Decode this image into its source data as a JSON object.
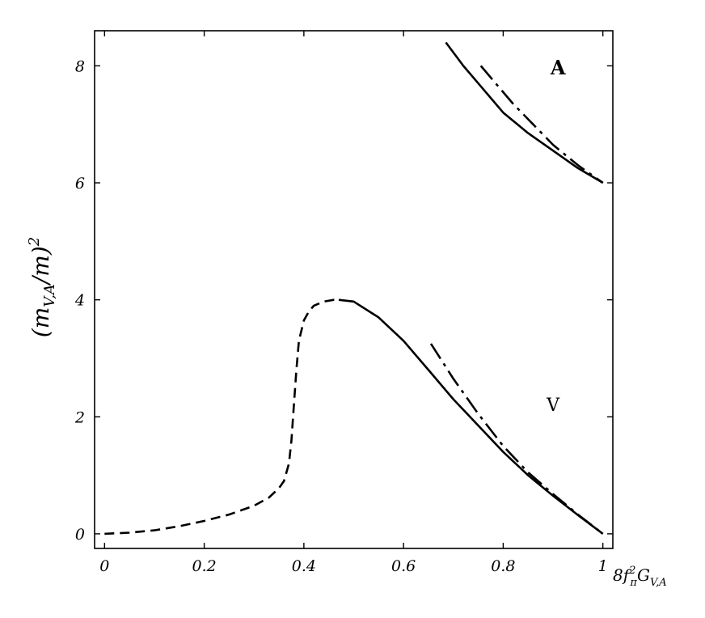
{
  "chart_data": {
    "type": "line",
    "xlabel": "8f_π²G_{V,A}",
    "ylabel": "(m_{V,A}/m)²",
    "xlim": [
      -0.02,
      1.02
    ],
    "ylim": [
      -0.25,
      8.6
    ],
    "xticks": [
      0,
      0.2,
      0.4,
      0.6,
      0.8,
      1
    ],
    "xtick_labels": [
      "0",
      "0.2",
      "0.4",
      "0.6",
      "0.8",
      "1"
    ],
    "yticks": [
      0,
      2,
      4,
      6,
      8
    ],
    "ytick_labels": [
      "0",
      "2",
      "4",
      "6",
      "8"
    ],
    "grid": false,
    "legend": "none",
    "annotations": [
      {
        "text": "A",
        "x": 0.91,
        "y": 7.85
      },
      {
        "text": "V",
        "x": 0.9,
        "y": 2.1
      }
    ],
    "series": [
      {
        "style": "dashed",
        "x": [
          0,
          0.05,
          0.1,
          0.15,
          0.2,
          0.25,
          0.3,
          0.33,
          0.35,
          0.36,
          0.37,
          0.375,
          0.38,
          0.385,
          0.39,
          0.4,
          0.41,
          0.42,
          0.44,
          0.46,
          0.47
        ],
        "values": [
          0,
          0.02,
          0.06,
          0.13,
          0.22,
          0.33,
          0.48,
          0.62,
          0.78,
          0.9,
          1.2,
          1.6,
          2.2,
          2.8,
          3.3,
          3.65,
          3.8,
          3.9,
          3.97,
          4.0,
          4.0
        ]
      },
      {
        "style": "solid",
        "x": [
          0.47,
          0.5,
          0.55,
          0.6,
          0.65,
          0.7,
          0.75,
          0.8,
          0.85,
          0.9,
          0.95,
          1.0
        ],
        "values": [
          4.0,
          3.97,
          3.7,
          3.3,
          2.8,
          2.3,
          1.85,
          1.4,
          1.0,
          0.65,
          0.32,
          0.0
        ]
      },
      {
        "style": "dashdot",
        "x": [
          0.655,
          0.7,
          0.75,
          0.8,
          0.85,
          0.9,
          0.95,
          1.0
        ],
        "values": [
          3.25,
          2.65,
          2.05,
          1.5,
          1.05,
          0.68,
          0.33,
          0.0
        ]
      },
      {
        "style": "solid",
        "x": [
          0.685,
          0.72,
          0.76,
          0.8,
          0.85,
          0.9,
          0.95,
          1.0
        ],
        "values": [
          8.4,
          8.0,
          7.6,
          7.2,
          6.85,
          6.55,
          6.25,
          6.0
        ]
      },
      {
        "style": "dashdot",
        "x": [
          0.755,
          0.78,
          0.82,
          0.86,
          0.9,
          0.95,
          1.0
        ],
        "values": [
          8.0,
          7.75,
          7.35,
          7.0,
          6.65,
          6.3,
          6.0
        ]
      }
    ]
  }
}
